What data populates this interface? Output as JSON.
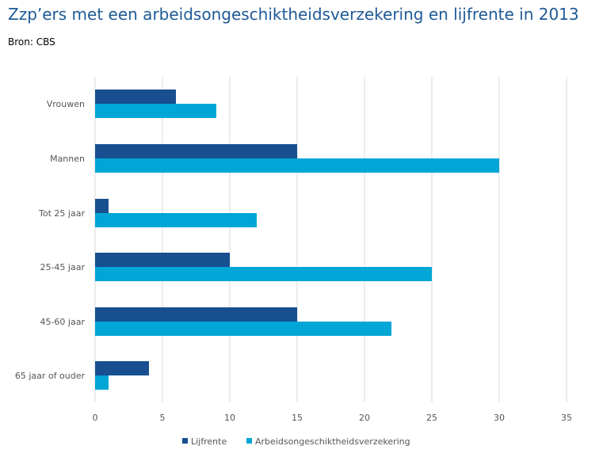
{
  "title": "Zzp’ers met een arbeidsongeschiktheidsverzekering en lijfrente in 2013",
  "source": "Bron: CBS",
  "colors": {
    "lijfrente": "#174f91",
    "arbeid": "#00a6d6",
    "grid": "#d9d9d9",
    "text": "#555555"
  },
  "chart_data": {
    "type": "bar",
    "orientation": "horizontal",
    "title": "Zzp’ers met een arbeidsongeschiktheidsverzekering en lijfrente in 2013",
    "categories": [
      "Vrouwen",
      "Mannen",
      "Tot 25 jaar",
      "25-45 jaar",
      "45-60 jaar",
      "65 jaar of ouder"
    ],
    "series": [
      {
        "name": "Lijfrente",
        "values": [
          6,
          15,
          1,
          10,
          15,
          4
        ]
      },
      {
        "name": "Arbeidsongeschiktheidsverzekering",
        "values": [
          9,
          30,
          12,
          25,
          22,
          1
        ]
      }
    ],
    "xlim": [
      0,
      35
    ],
    "xticks": [
      0,
      5,
      10,
      15,
      20,
      25,
      30,
      35
    ],
    "xlabel": "",
    "ylabel": "",
    "grid": true,
    "legend": "bottom"
  }
}
